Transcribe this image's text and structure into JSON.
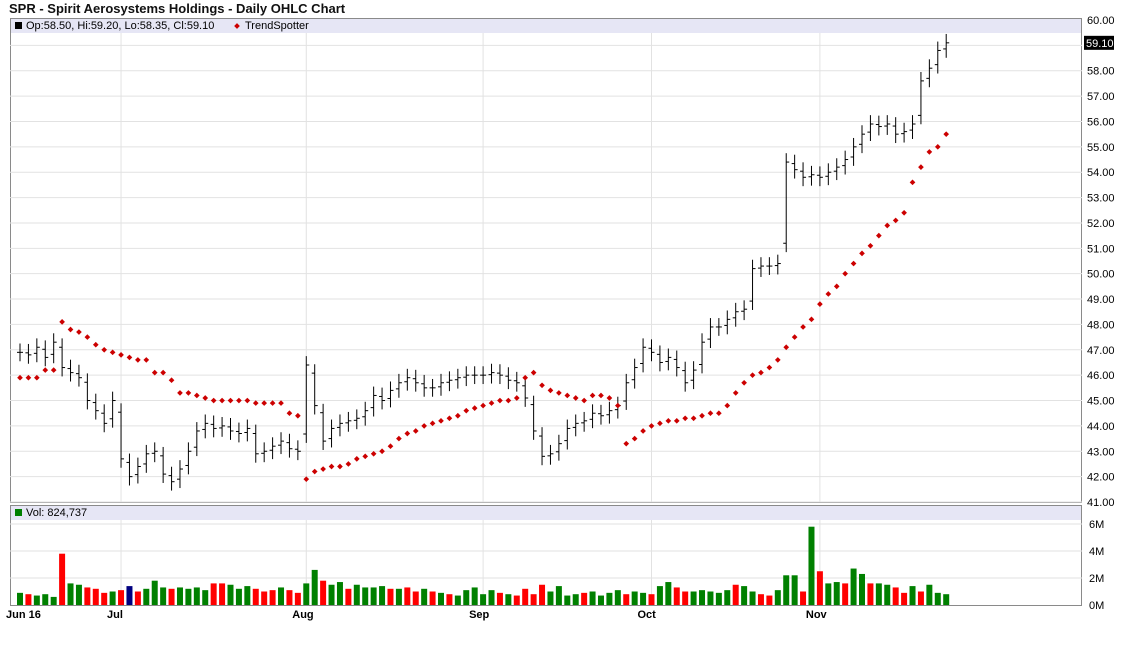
{
  "title": "SPR - Spirit Aerosystems Holdings - Daily OHLC Chart",
  "price_legend": {
    "ohlc_label": "Op:58.50, Hi:59.20, Lo:58.35, Cl:59.10",
    "indicator_label": "TrendSpotter"
  },
  "volume_legend": {
    "label": "Vol: 824,737"
  },
  "last_price_tag": "59.10",
  "colors": {
    "up_volume": "#008000",
    "down_volume": "#ff0000",
    "neutral_volume": "#000080",
    "trendspotter": "#cc0000",
    "legend_bg": "#e6e6f5",
    "grid": "#e2e2e2"
  },
  "chart_data": [
    {
      "type": "ohlc",
      "title": "SPR - Spirit Aerosystems Holdings - Daily OHLC Chart",
      "y_ticks": [
        "60.00",
        "59.00",
        "58.00",
        "57.00",
        "56.00",
        "55.00",
        "54.00",
        "53.00",
        "52.00",
        "51.00",
        "50.00",
        "49.00",
        "48.00",
        "47.00",
        "46.00",
        "45.00",
        "44.00",
        "43.00",
        "42.00",
        "41.00"
      ],
      "ylim": [
        41,
        60
      ],
      "x_ticks": [
        {
          "label": "Jun 16",
          "index": 0
        },
        {
          "label": "Jul",
          "index": 12
        },
        {
          "label": "Aug",
          "index": 34
        },
        {
          "label": "Sep",
          "index": 55
        },
        {
          "label": "Oct",
          "index": 75
        },
        {
          "label": "Nov",
          "index": 95
        }
      ],
      "grid": true,
      "series": [
        {
          "name": "Price",
          "close": [
            46.9,
            46.8,
            47.1,
            46.7,
            47.3,
            46.3,
            46.1,
            45.9,
            45.0,
            44.6,
            44.1,
            45.0,
            42.7,
            42.0,
            42.4,
            42.9,
            43.0,
            42.1,
            41.8,
            42.3,
            43.0,
            43.8,
            44.1,
            43.9,
            44.0,
            43.8,
            43.7,
            43.9,
            42.9,
            43.0,
            43.2,
            43.4,
            43.1,
            43.0,
            46.4,
            44.8,
            43.4,
            43.9,
            44.1,
            44.2,
            44.3,
            44.6,
            45.2,
            45.0,
            45.4,
            45.7,
            45.9,
            45.7,
            45.5,
            45.5,
            45.7,
            45.8,
            45.9,
            46.0,
            46.0,
            46.0,
            46.1,
            46.0,
            45.8,
            45.7,
            45.1,
            43.8,
            42.8,
            42.9,
            43.3,
            43.9,
            44.1,
            44.2,
            44.5,
            44.4,
            44.6,
            44.8,
            45.7,
            46.3,
            47.1,
            46.9,
            46.5,
            46.7,
            46.3,
            45.7,
            46.2,
            47.3,
            47.9,
            47.9,
            48.2,
            48.5,
            48.6,
            50.2,
            50.3,
            50.3,
            50.4,
            54.4,
            54.1,
            53.8,
            53.9,
            53.8,
            54.0,
            54.2,
            54.5,
            55.0,
            55.5,
            55.9,
            55.8,
            55.9,
            55.5,
            55.6,
            55.9,
            57.6,
            58.1,
            58.8,
            59.1
          ]
        },
        {
          "name": "TrendSpotter",
          "values": [
            45.9,
            45.9,
            45.9,
            46.2,
            46.2,
            48.1,
            47.8,
            47.7,
            47.5,
            47.2,
            47.0,
            46.9,
            46.8,
            46.7,
            46.6,
            46.6,
            46.1,
            46.1,
            45.8,
            45.3,
            45.3,
            45.2,
            45.1,
            45.0,
            45.0,
            45.0,
            45.0,
            45.0,
            44.9,
            44.9,
            44.9,
            44.9,
            44.5,
            44.4,
            41.9,
            42.2,
            42.3,
            42.4,
            42.4,
            42.5,
            42.7,
            42.8,
            42.9,
            43.0,
            43.2,
            43.5,
            43.7,
            43.8,
            44.0,
            44.1,
            44.2,
            44.3,
            44.4,
            44.6,
            44.7,
            44.8,
            44.9,
            45.0,
            45.0,
            45.1,
            45.9,
            46.1,
            45.6,
            45.4,
            45.3,
            45.2,
            45.1,
            45.0,
            45.2,
            45.2,
            45.1,
            44.8,
            43.3,
            43.5,
            43.8,
            44.0,
            44.1,
            44.2,
            44.2,
            44.3,
            44.3,
            44.4,
            44.5,
            44.5,
            44.8,
            45.3,
            45.7,
            46.0,
            46.1,
            46.3,
            46.6,
            47.1,
            47.5,
            47.9,
            48.2,
            48.8,
            49.2,
            49.5,
            50.0,
            50.4,
            50.8,
            51.1,
            51.5,
            51.9,
            52.1,
            52.4,
            53.6,
            54.2,
            54.8,
            55.0,
            55.5
          ]
        }
      ]
    },
    {
      "type": "bar",
      "y_ticks": [
        "6M",
        "4M",
        "2M",
        "0M"
      ],
      "ylim": [
        0,
        6
      ],
      "series": [
        {
          "name": "Vol",
          "values": [
            0.9,
            0.8,
            0.7,
            0.8,
            0.6,
            3.8,
            1.6,
            1.5,
            1.3,
            1.2,
            0.9,
            1.0,
            1.1,
            1.4,
            1.0,
            1.2,
            1.8,
            1.3,
            1.2,
            1.3,
            1.2,
            1.3,
            1.1,
            1.6,
            1.6,
            1.5,
            1.2,
            1.4,
            1.2,
            1.0,
            1.1,
            1.3,
            1.1,
            0.9,
            1.6,
            2.6,
            1.8,
            1.5,
            1.7,
            1.2,
            1.5,
            1.3,
            1.3,
            1.4,
            1.2,
            1.2,
            1.3,
            1.0,
            1.2,
            1.0,
            0.9,
            0.8,
            0.7,
            1.1,
            1.3,
            0.8,
            1.1,
            0.9,
            0.8,
            0.7,
            1.2,
            0.8,
            1.5,
            1.0,
            1.4,
            0.7,
            0.8,
            0.9,
            1.0,
            0.7,
            0.9,
            1.1,
            0.8,
            1.0,
            0.9,
            0.8,
            1.4,
            1.7,
            1.3,
            1.0,
            1.0,
            1.1,
            1.0,
            0.9,
            1.1,
            1.5,
            1.4,
            1.0,
            0.8,
            0.7,
            1.1,
            2.2,
            2.2,
            1.0,
            5.8,
            2.5,
            1.6,
            1.7,
            1.6,
            2.7,
            2.3,
            1.6,
            1.6,
            1.5,
            1.3,
            0.9,
            1.4,
            1.0,
            1.5,
            0.9,
            0.8
          ],
          "colors": [
            "g",
            "r",
            "g",
            "g",
            "g",
            "r",
            "g",
            "g",
            "r",
            "r",
            "r",
            "g",
            "r",
            "b",
            "r",
            "g",
            "g",
            "g",
            "r",
            "g",
            "g",
            "g",
            "g",
            "r",
            "r",
            "g",
            "g",
            "g",
            "r",
            "r",
            "r",
            "g",
            "r",
            "r",
            "g",
            "g",
            "r",
            "g",
            "g",
            "r",
            "g",
            "g",
            "g",
            "g",
            "r",
            "g",
            "r",
            "r",
            "g",
            "r",
            "g",
            "r",
            "g",
            "g",
            "g",
            "g",
            "g",
            "r",
            "g",
            "r",
            "r",
            "r",
            "r",
            "g",
            "g",
            "g",
            "g",
            "r",
            "g",
            "g",
            "g",
            "g",
            "r",
            "g",
            "g",
            "r",
            "g",
            "g",
            "r",
            "r",
            "g",
            "g",
            "g",
            "g",
            "g",
            "r",
            "g",
            "g",
            "r",
            "r",
            "g",
            "g",
            "g",
            "r",
            "g",
            "r",
            "g",
            "g",
            "r",
            "g",
            "g",
            "r",
            "g",
            "g",
            "r",
            "r",
            "g",
            "r",
            "g",
            "g",
            "g"
          ]
        }
      ]
    }
  ]
}
